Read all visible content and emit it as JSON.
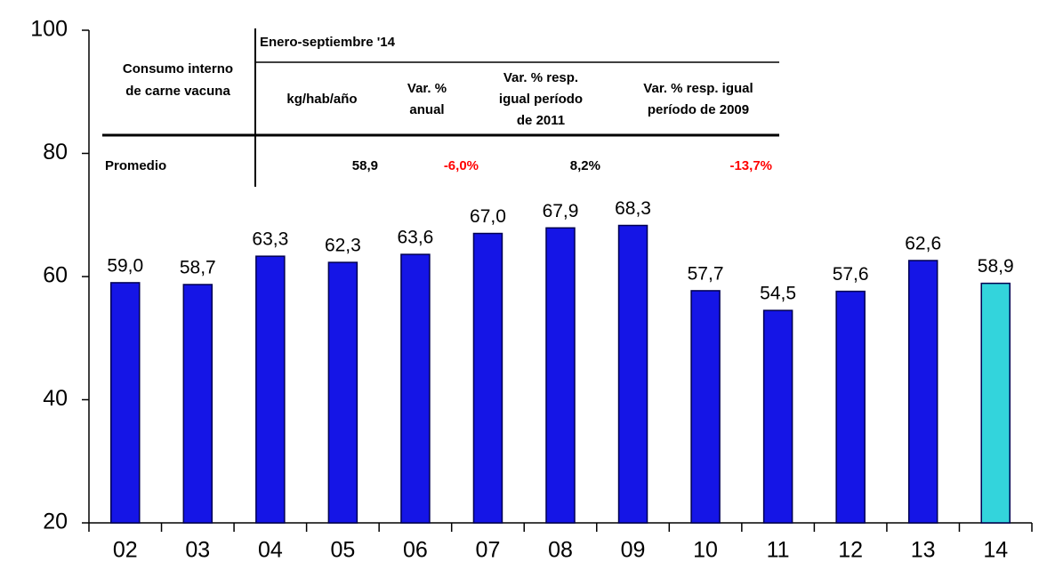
{
  "chart_data": {
    "type": "bar",
    "categories": [
      "02",
      "03",
      "04",
      "05",
      "06",
      "07",
      "08",
      "09",
      "10",
      "11",
      "12",
      "13",
      "14"
    ],
    "values": [
      59.0,
      58.7,
      63.3,
      62.3,
      63.6,
      67.0,
      67.9,
      68.3,
      57.7,
      54.5,
      57.6,
      62.6,
      58.9
    ],
    "value_labels": [
      "59,0",
      "58,7",
      "63,3",
      "62,3",
      "63,6",
      "67,0",
      "67,9",
      "68,3",
      "57,7",
      "54,5",
      "57,6",
      "62,6",
      "58,9"
    ],
    "colors": [
      "#1515e6",
      "#1515e6",
      "#1515e6",
      "#1515e6",
      "#1515e6",
      "#1515e6",
      "#1515e6",
      "#1515e6",
      "#1515e6",
      "#1515e6",
      "#1515e6",
      "#1515e6",
      "#33d4dc"
    ],
    "ylim": [
      20,
      100
    ],
    "yticks": [
      20,
      40,
      60,
      80,
      100
    ],
    "grid": false
  },
  "table": {
    "period": "Enero-septiembre '14",
    "row_header": [
      "Consumo interno",
      "de carne vacuna"
    ],
    "columns": [
      [
        "kg/hab/año"
      ],
      [
        "Var. %",
        "anual"
      ],
      [
        "Var. % resp.",
        "igual período",
        "de 2011"
      ],
      [
        "Var. % resp. igual",
        "período de 2009"
      ]
    ],
    "row": {
      "label": "Promedio",
      "cells": [
        "58,9",
        "-6,0%",
        "8,2%",
        "-13,7%"
      ],
      "cell_colors": [
        "#000000",
        "#ff0000",
        "#000000",
        "#ff0000"
      ]
    }
  }
}
